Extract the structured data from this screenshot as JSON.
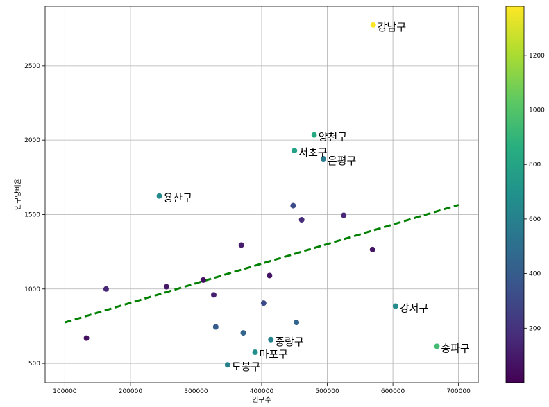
{
  "chart_data": {
    "type": "scatter",
    "xlabel": "인구수",
    "ylabel": "인구당비율",
    "xlim": [
      70000,
      730000
    ],
    "ylim": [
      370,
      2900
    ],
    "grid": true,
    "x_ticks": [
      100000,
      200000,
      300000,
      400000,
      500000,
      600000,
      700000
    ],
    "y_ticks": [
      500,
      1000,
      1500,
      2000,
      2500
    ],
    "colorbar": {
      "colormap": "viridis",
      "min": 0,
      "max": 1380,
      "ticks": [
        200,
        400,
        600,
        800,
        1000,
        1200
      ]
    },
    "points": [
      {
        "x": 570000,
        "y": 2775,
        "c": 1380,
        "label": "강남구"
      },
      {
        "x": 480000,
        "y": 2035,
        "c": 830,
        "label": "양천구"
      },
      {
        "x": 450000,
        "y": 1930,
        "c": 790,
        "label": "서초구"
      },
      {
        "x": 494000,
        "y": 1875,
        "c": 560,
        "label": "은평구"
      },
      {
        "x": 244000,
        "y": 1625,
        "c": 650,
        "label": "용산구"
      },
      {
        "x": 604000,
        "y": 885,
        "c": 650,
        "label": "강서구"
      },
      {
        "x": 667000,
        "y": 615,
        "c": 950,
        "label": "송파구"
      },
      {
        "x": 414000,
        "y": 660,
        "c": 600,
        "label": "중랑구"
      },
      {
        "x": 390000,
        "y": 575,
        "c": 680,
        "label": "마포구"
      },
      {
        "x": 348000,
        "y": 490,
        "c": 600,
        "label": "도봉구"
      },
      {
        "x": 448000,
        "y": 1560,
        "c": 310,
        "label": ""
      },
      {
        "x": 461000,
        "y": 1465,
        "c": 170,
        "label": ""
      },
      {
        "x": 525000,
        "y": 1495,
        "c": 150,
        "label": ""
      },
      {
        "x": 369000,
        "y": 1295,
        "c": 110,
        "label": ""
      },
      {
        "x": 569000,
        "y": 1265,
        "c": 80,
        "label": ""
      },
      {
        "x": 412000,
        "y": 1090,
        "c": 70,
        "label": ""
      },
      {
        "x": 311000,
        "y": 1060,
        "c": 60,
        "label": ""
      },
      {
        "x": 255000,
        "y": 1015,
        "c": 90,
        "label": ""
      },
      {
        "x": 163000,
        "y": 1000,
        "c": 150,
        "label": ""
      },
      {
        "x": 327000,
        "y": 960,
        "c": 120,
        "label": ""
      },
      {
        "x": 403000,
        "y": 905,
        "c": 310,
        "label": ""
      },
      {
        "x": 453000,
        "y": 775,
        "c": 440,
        "label": ""
      },
      {
        "x": 330000,
        "y": 745,
        "c": 400,
        "label": ""
      },
      {
        "x": 372000,
        "y": 705,
        "c": 440,
        "label": ""
      },
      {
        "x": 133000,
        "y": 670,
        "c": 60,
        "label": ""
      }
    ],
    "trendline": {
      "x": [
        100000,
        700000
      ],
      "y": [
        775,
        1565
      ],
      "color": "#008000",
      "style": "dashed"
    }
  }
}
